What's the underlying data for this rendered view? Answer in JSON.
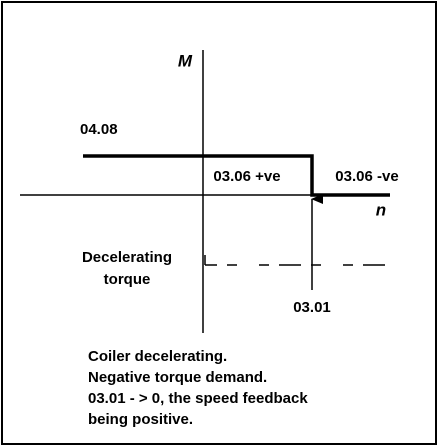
{
  "axes": {
    "y_label": "M",
    "x_label": "n"
  },
  "labels": {
    "limit": "04.08",
    "region_pos": "03.06 +ve",
    "region_neg": "03.06 -ve",
    "torque_line1": "Decelerating",
    "torque_line2": "torque",
    "speed": "03.01"
  },
  "notes": [
    "Coiler decelerating.",
    "Negative torque demand.",
    "03.01 - > 0, the speed feedback",
    "being positive."
  ]
}
